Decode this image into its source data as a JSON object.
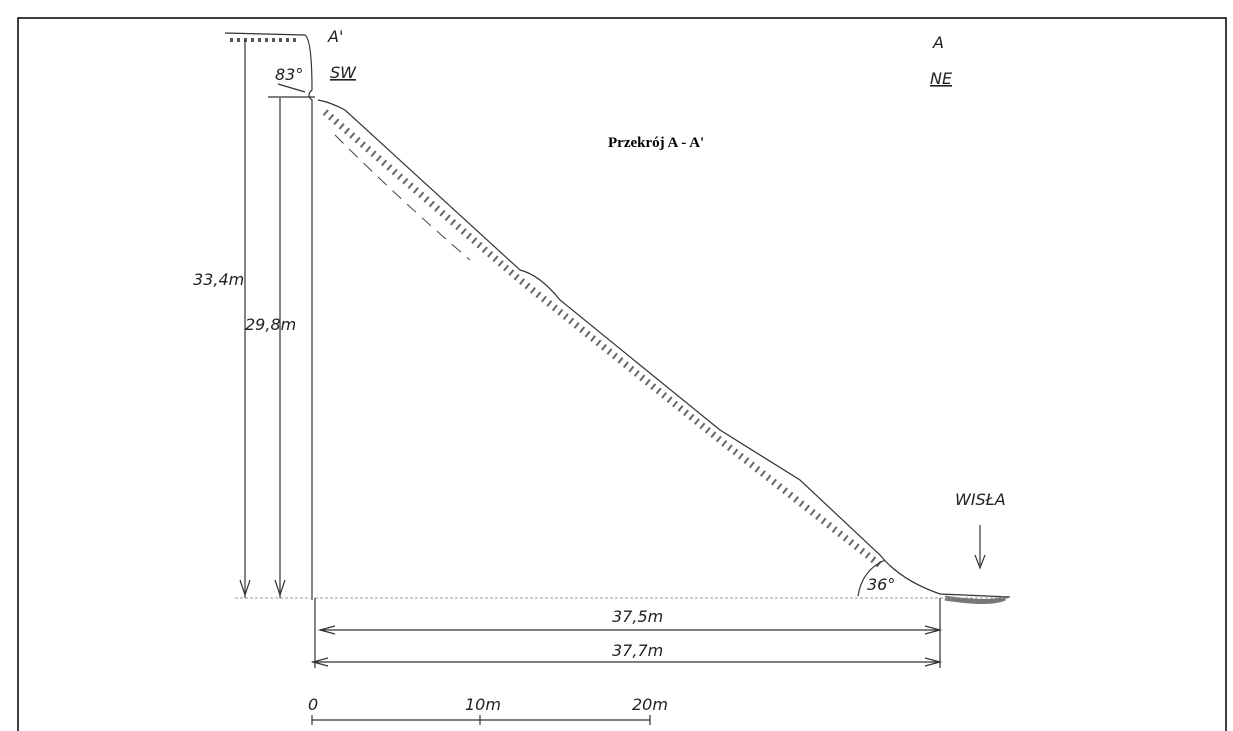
{
  "section": {
    "title": "Przekrój A - A'",
    "left_point": {
      "label": "A'",
      "direction": "SW"
    },
    "right_point": {
      "label": "A",
      "direction": "NE"
    },
    "angles": {
      "cliff": "83°",
      "slope": "36°"
    },
    "heights": [
      "33,4m",
      "29,8m"
    ],
    "distances": [
      "37,5m",
      "37,7m"
    ],
    "river": "WISŁA",
    "scale": [
      "0",
      "10m",
      "20m"
    ]
  }
}
